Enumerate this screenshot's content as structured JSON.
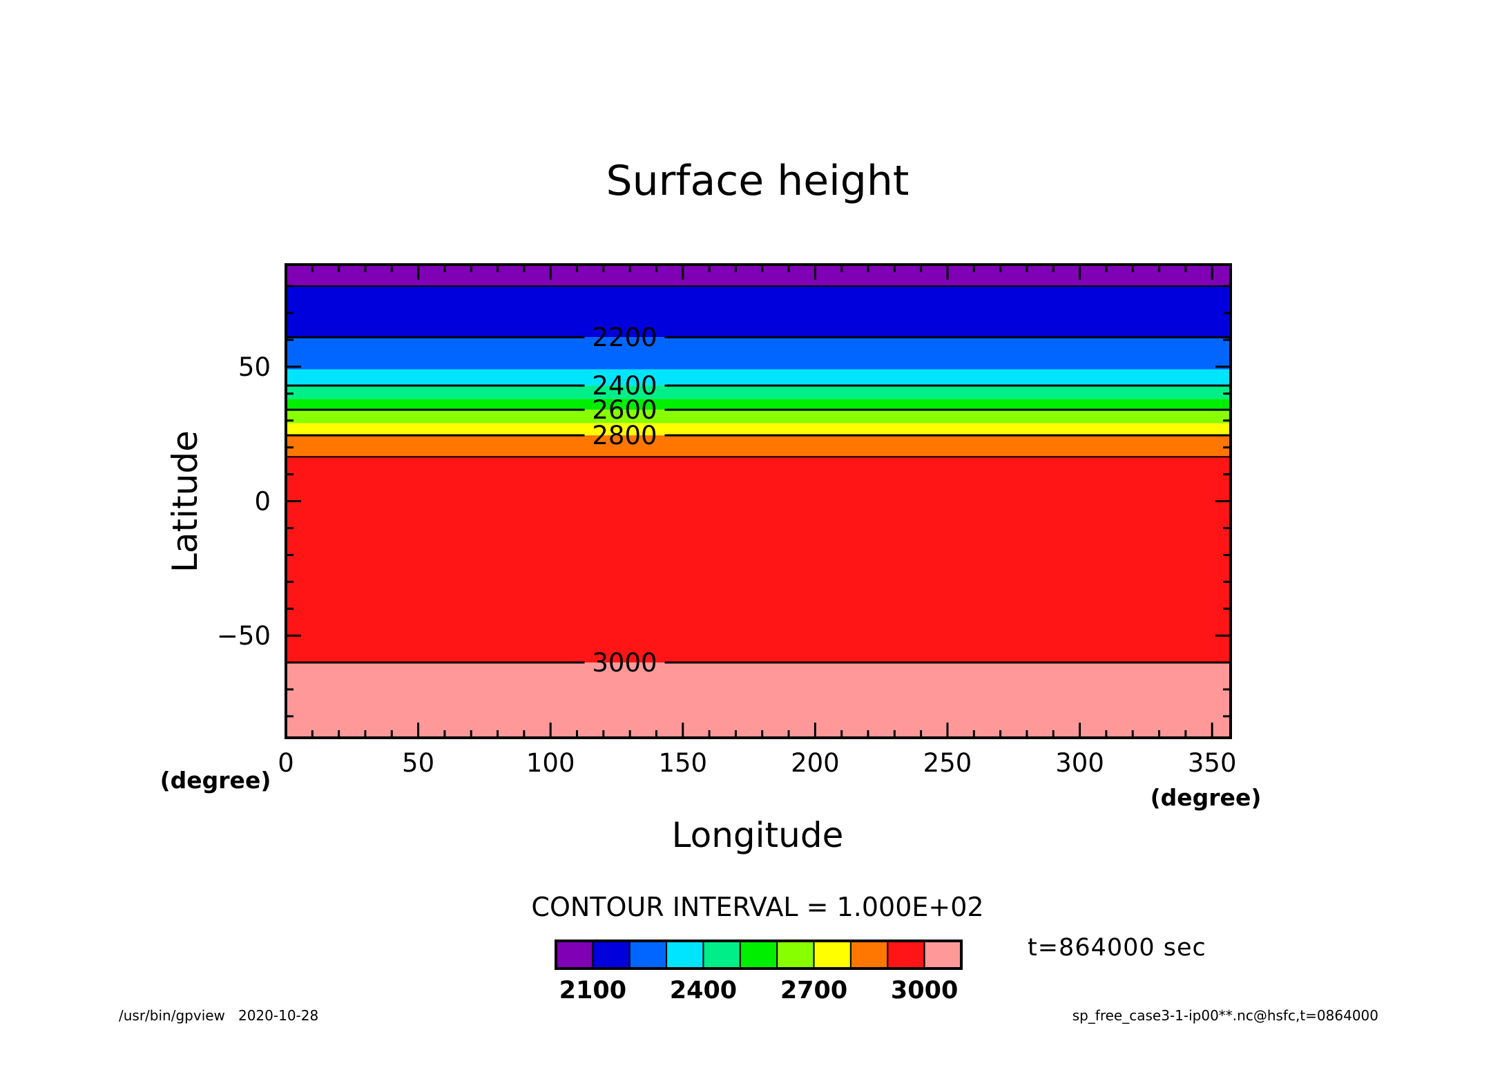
{
  "chart_data": {
    "type": "heatmap",
    "title": "Surface height",
    "xlabel": "Longitude",
    "ylabel": "Latitude",
    "x_unit": "(degree)",
    "y_unit": "(degree)",
    "xlim": [
      0,
      357
    ],
    "ylim": [
      -88,
      88
    ],
    "xticks": [
      0,
      50,
      100,
      150,
      200,
      250,
      300,
      350
    ],
    "yticks": [
      -50,
      0,
      50
    ],
    "bands": [
      {
        "lat_min": 80,
        "lat_max": 88,
        "color": "#7f00b5"
      },
      {
        "lat_min": 61,
        "lat_max": 80,
        "color": "#0000dd"
      },
      {
        "lat_min": 49,
        "lat_max": 61,
        "color": "#0066ff"
      },
      {
        "lat_min": 43,
        "lat_max": 49,
        "color": "#00e5ff"
      },
      {
        "lat_min": 38,
        "lat_max": 43,
        "color": "#00ee88"
      },
      {
        "lat_min": 34,
        "lat_max": 38,
        "color": "#00ee00"
      },
      {
        "lat_min": 29,
        "lat_max": 34,
        "color": "#88ff00"
      },
      {
        "lat_min": 24.5,
        "lat_max": 29,
        "color": "#ffff00"
      },
      {
        "lat_min": 16.5,
        "lat_max": 24.5,
        "color": "#ff7700"
      },
      {
        "lat_min": -60,
        "lat_max": 16.5,
        "color": "#ff1515"
      },
      {
        "lat_min": -88,
        "lat_max": -60,
        "color": "#ff9999"
      }
    ],
    "contours": [
      {
        "lat": 80,
        "label": ""
      },
      {
        "lat": 61,
        "label": "2200"
      },
      {
        "lat": 43,
        "label": "2400"
      },
      {
        "lat": 34,
        "label": "2600"
      },
      {
        "lat": 24.5,
        "label": "2800"
      },
      {
        "lat": 16.5,
        "label": ""
      },
      {
        "lat": -60,
        "label": "3000"
      }
    ],
    "contour_label_lon": 128,
    "contour_interval_text": "CONTOUR INTERVAL = 1.000E+02",
    "colorbar": {
      "colors": [
        "#7f00b5",
        "#0000dd",
        "#0066ff",
        "#00e5ff",
        "#00ee88",
        "#00ee00",
        "#88ff00",
        "#ffff00",
        "#ff7700",
        "#ff1515",
        "#ff9999"
      ],
      "tick_labels": [
        "2100",
        "2400",
        "2700",
        "3000"
      ],
      "tick_boundary_index": [
        1,
        4,
        7,
        10
      ]
    }
  },
  "annotations": {
    "time_label": "t=864000 sec",
    "footer_left": "/usr/bin/gpview   2020-10-28",
    "footer_right": "sp_free_case3-1-ip00**.nc@hsfc,t=0864000"
  }
}
